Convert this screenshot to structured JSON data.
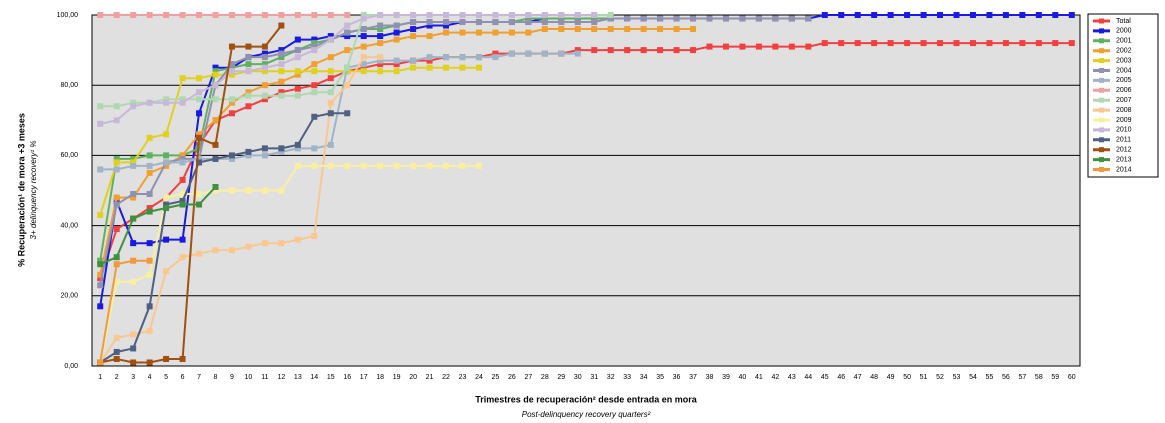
{
  "chart_data": {
    "type": "line",
    "ylabel": "% Recuperación¹ de mora +3 meses",
    "ylabel_en": "3+ delinquency recovery¹ %",
    "xlabel": "Trimestres de recuperación² desde entrada en mora",
    "xlabel_en": "Post-delinquency recovery quarters²",
    "categories": [
      "1",
      "2",
      "3",
      "4",
      "5",
      "6",
      "7",
      "8",
      "9",
      "10",
      "11",
      "12",
      "13",
      "14",
      "15",
      "16",
      "17",
      "18",
      "19",
      "20",
      "21",
      "22",
      "23",
      "24",
      "25",
      "26",
      "27",
      "28",
      "29",
      "30",
      "31",
      "32",
      "33",
      "34",
      "35",
      "36",
      "37",
      "38",
      "39",
      "40",
      "41",
      "42",
      "43",
      "44",
      "45",
      "46",
      "47",
      "48",
      "49",
      "50",
      "51",
      "52",
      "53",
      "54",
      "55",
      "56",
      "57",
      "58",
      "59",
      "60"
    ],
    "ylim": [
      0,
      100
    ],
    "yticks": [
      {
        "value": 0,
        "label": "0,00"
      },
      {
        "value": 20,
        "label": "20,00"
      },
      {
        "value": 40,
        "label": "40,00"
      },
      {
        "value": 60,
        "label": "60,00"
      },
      {
        "value": 80,
        "label": "80,00"
      },
      {
        "value": 100,
        "label": "100,00"
      }
    ],
    "grid": true,
    "legend": "right",
    "series": [
      {
        "name": "Total",
        "color": "#f04040",
        "values": [
          25,
          39,
          42,
          45,
          48,
          53,
          63,
          70,
          72,
          74,
          76,
          78,
          79,
          80,
          82,
          84,
          85,
          86,
          86,
          87,
          87,
          88,
          88,
          88,
          89,
          89,
          89,
          89,
          89,
          90,
          90,
          90,
          90,
          90,
          90,
          90,
          90,
          91,
          91,
          91,
          91,
          91,
          91,
          91,
          92,
          92,
          92,
          92,
          92,
          92,
          92,
          92,
          92,
          92,
          92,
          92,
          92,
          92,
          92,
          92
        ]
      },
      {
        "name": "2000",
        "color": "#1a1ae0",
        "values": [
          17,
          47,
          35,
          35,
          36,
          36,
          72,
          85,
          85,
          88,
          89,
          90,
          93,
          93,
          94,
          94,
          94,
          94,
          95,
          96,
          97,
          97,
          98,
          98,
          98,
          98,
          98,
          99,
          99,
          99,
          99,
          99,
          99,
          99,
          99,
          99,
          99,
          99,
          99,
          99,
          99,
          99,
          99,
          99,
          100,
          100,
          100,
          100,
          100,
          100,
          100,
          100,
          100,
          100,
          100,
          100,
          100,
          100,
          100,
          100
        ]
      },
      {
        "name": "2001",
        "color": "#60b060",
        "values": [
          30,
          59,
          59,
          60,
          60,
          60,
          62,
          84,
          85,
          86,
          86,
          88,
          90,
          92,
          93,
          95,
          96,
          96,
          97,
          98,
          98,
          98,
          98,
          98,
          98,
          98,
          99,
          99,
          99,
          99,
          99,
          99,
          null,
          null,
          null,
          null,
          null,
          null,
          null,
          null,
          null,
          null,
          null,
          null,
          null,
          null,
          null,
          null,
          null,
          null,
          null,
          null,
          null,
          null,
          null,
          null,
          null,
          null,
          null,
          null
        ]
      },
      {
        "name": "2002",
        "color": "#f0a030",
        "values": [
          26,
          48,
          48,
          55,
          57,
          60,
          66,
          70,
          75,
          78,
          80,
          81,
          83,
          86,
          88,
          90,
          91,
          92,
          93,
          94,
          94,
          95,
          95,
          95,
          95,
          95,
          95,
          96,
          96,
          96,
          96,
          96,
          96,
          96,
          96,
          96,
          96,
          null,
          null,
          null,
          null,
          null,
          null,
          null,
          null,
          null,
          null,
          null,
          null,
          null,
          null,
          null,
          null,
          null,
          null,
          null,
          null,
          null,
          null,
          null
        ]
      },
      {
        "name": "2003",
        "color": "#e0d020",
        "values": [
          43,
          58,
          58,
          65,
          66,
          82,
          82,
          83,
          83,
          84,
          84,
          84,
          84,
          84,
          84,
          84,
          84,
          84,
          84,
          85,
          85,
          85,
          85,
          85,
          null,
          null,
          null,
          null,
          null,
          null,
          null,
          null,
          null,
          null,
          null,
          null,
          null,
          null,
          null,
          null,
          null,
          null,
          null,
          null,
          null,
          null,
          null,
          null,
          null,
          null,
          null,
          null,
          null,
          null,
          null,
          null,
          null,
          null,
          null,
          null
        ]
      },
      {
        "name": "2004",
        "color": "#9090b0",
        "values": [
          23,
          46,
          49,
          49,
          58,
          59,
          59,
          80,
          86,
          88,
          88,
          89,
          90,
          91,
          93,
          95,
          96,
          97,
          97,
          98,
          98,
          98,
          98,
          98,
          98,
          98,
          98,
          98,
          98,
          98,
          98,
          99,
          99,
          99,
          99,
          99,
          99,
          99,
          99,
          99,
          99,
          99,
          99,
          99,
          null,
          null,
          null,
          null,
          null,
          null,
          null,
          null,
          null,
          null,
          null,
          null,
          null,
          null,
          null,
          null
        ]
      },
      {
        "name": "2005",
        "color": "#a0b4c8",
        "values": [
          56,
          56,
          57,
          57,
          58,
          58,
          59,
          59,
          59,
          60,
          60,
          61,
          62,
          62,
          63,
          85,
          86,
          87,
          87,
          87,
          88,
          88,
          88,
          88,
          88,
          89,
          89,
          89,
          89,
          89,
          null,
          null,
          null,
          null,
          null,
          null,
          null,
          null,
          null,
          null,
          null,
          null,
          null,
          null,
          null,
          null,
          null,
          null,
          null,
          null,
          null,
          null,
          null,
          null,
          null,
          null,
          null,
          null,
          null,
          null
        ]
      },
      {
        "name": "2006",
        "color": "#f0a0a0",
        "values": [
          100,
          100,
          100,
          100,
          100,
          100,
          100,
          100,
          100,
          100,
          100,
          100,
          100,
          100,
          100,
          100,
          null,
          null,
          null,
          null,
          null,
          null,
          null,
          null,
          null,
          null,
          null,
          null,
          null,
          null,
          null,
          null,
          null,
          null,
          null,
          null,
          null,
          null,
          null,
          null,
          null,
          null,
          null,
          null,
          null,
          null,
          null,
          null,
          null,
          null,
          null,
          null,
          null,
          null,
          null,
          null,
          null,
          null,
          null,
          null
        ]
      },
      {
        "name": "2007",
        "color": "#b0d8b0",
        "values": [
          74,
          74,
          75,
          75,
          76,
          76,
          76,
          76,
          76,
          77,
          77,
          77,
          77,
          78,
          78,
          85,
          100,
          100,
          100,
          100,
          100,
          100,
          100,
          100,
          100,
          100,
          100,
          100,
          100,
          100,
          100,
          100,
          null,
          null,
          null,
          null,
          null,
          null,
          null,
          null,
          null,
          null,
          null,
          null,
          null,
          null,
          null,
          null,
          null,
          null,
          null,
          null,
          null,
          null,
          null,
          null,
          null,
          null,
          null,
          null
        ]
      },
      {
        "name": "2008",
        "color": "#f8c890",
        "values": [
          1,
          8,
          9,
          10,
          27,
          31,
          32,
          33,
          33,
          34,
          35,
          35,
          36,
          37,
          75,
          80,
          88,
          88,
          null,
          null,
          null,
          null,
          null,
          null,
          null,
          null,
          null,
          null,
          null,
          null,
          null,
          null,
          null,
          null,
          null,
          null,
          null,
          null,
          null,
          null,
          null,
          null,
          null,
          null,
          null,
          null,
          null,
          null,
          null,
          null,
          null,
          null,
          null,
          null,
          null,
          null,
          null,
          null,
          null,
          null
        ]
      },
      {
        "name": "2009",
        "color": "#f8f0a0",
        "values": [
          1,
          24,
          24,
          26,
          48,
          49,
          49,
          50,
          50,
          50,
          50,
          50,
          57,
          57,
          57,
          57,
          57,
          57,
          57,
          57,
          57,
          57,
          57,
          57,
          null,
          null,
          null,
          null,
          null,
          null,
          null,
          null,
          null,
          null,
          null,
          null,
          null,
          null,
          null,
          null,
          null,
          null,
          null,
          null,
          null,
          null,
          null,
          null,
          null,
          null,
          null,
          null,
          null,
          null,
          null,
          null,
          null,
          null,
          null,
          null
        ]
      },
      {
        "name": "2010",
        "color": "#c8b8d8",
        "values": [
          69,
          70,
          74,
          75,
          75,
          75,
          78,
          80,
          84,
          84,
          85,
          86,
          88,
          90,
          93,
          97,
          99,
          100,
          100,
          100,
          100,
          100,
          100,
          100,
          100,
          100,
          100,
          100,
          100,
          100,
          100,
          null,
          null,
          null,
          null,
          null,
          null,
          null,
          null,
          null,
          null,
          null,
          null,
          null,
          null,
          null,
          null,
          null,
          null,
          null,
          null,
          null,
          null,
          null,
          null,
          null,
          null,
          null,
          null,
          null
        ]
      },
      {
        "name": "2011",
        "color": "#506080",
        "values": [
          1,
          4,
          5,
          17,
          46,
          47,
          58,
          59,
          60,
          61,
          62,
          62,
          63,
          71,
          72,
          72,
          null,
          null,
          null,
          null,
          null,
          null,
          null,
          null,
          null,
          null,
          null,
          null,
          null,
          null,
          null,
          null,
          null,
          null,
          null,
          null,
          null,
          null,
          null,
          null,
          null,
          null,
          null,
          null,
          null,
          null,
          null,
          null,
          null,
          null,
          null,
          null,
          null,
          null,
          null,
          null,
          null,
          null,
          null,
          null
        ]
      },
      {
        "name": "2012",
        "color": "#a05010",
        "values": [
          1,
          2,
          1,
          1,
          2,
          2,
          65,
          63,
          91,
          91,
          91,
          97,
          null,
          null,
          null,
          null,
          null,
          null,
          null,
          null,
          null,
          null,
          null,
          null,
          null,
          null,
          null,
          null,
          null,
          null,
          null,
          null,
          null,
          null,
          null,
          null,
          null,
          null,
          null,
          null,
          null,
          null,
          null,
          null,
          null,
          null,
          null,
          null,
          null,
          null,
          null,
          null,
          null,
          null,
          null,
          null,
          null,
          null,
          null,
          null
        ]
      },
      {
        "name": "2013",
        "color": "#409040",
        "values": [
          29,
          31,
          42,
          44,
          45,
          46,
          46,
          51,
          null,
          null,
          null,
          null,
          null,
          null,
          null,
          null,
          null,
          null,
          null,
          null,
          null,
          null,
          null,
          null,
          null,
          null,
          null,
          null,
          null,
          null,
          null,
          null,
          null,
          null,
          null,
          null,
          null,
          null,
          null,
          null,
          null,
          null,
          null,
          null,
          null,
          null,
          null,
          null,
          null,
          null,
          null,
          null,
          null,
          null,
          null,
          null,
          null,
          null,
          null,
          null
        ]
      },
      {
        "name": "2014",
        "color": "#f09a40",
        "values": [
          1,
          29,
          30,
          30,
          null,
          null,
          null,
          null,
          null,
          null,
          null,
          null,
          null,
          null,
          null,
          null,
          null,
          null,
          null,
          null,
          null,
          null,
          null,
          null,
          null,
          null,
          null,
          null,
          null,
          null,
          null,
          null,
          null,
          null,
          null,
          null,
          null,
          null,
          null,
          null,
          null,
          null,
          null,
          null,
          null,
          null,
          null,
          null,
          null,
          null,
          null,
          null,
          null,
          null,
          null,
          null,
          null,
          null,
          null,
          null
        ]
      }
    ]
  }
}
